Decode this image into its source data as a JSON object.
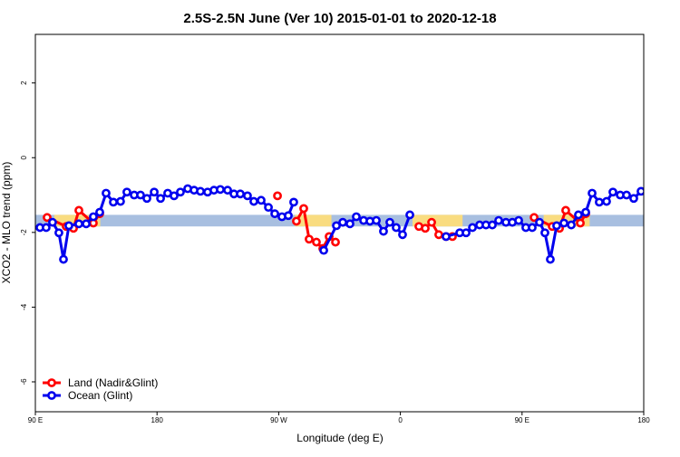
{
  "chart_data": {
    "type": "line",
    "title": "2.5S-2.5N June (Ver 10)   2015-01-01 to 2020-12-18",
    "xlabel": "Longitude (deg E)",
    "ylabel": "XCO2 - MLO trend (ppm)",
    "xlim": [
      90,
      540
    ],
    "ylim": [
      -6.8,
      3.3
    ],
    "xticks": [
      {
        "value": 90,
        "label": "90 E"
      },
      180,
      {
        "value": 270,
        "label": "90 W"
      },
      {
        "value": 360,
        "label": "0"
      },
      {
        "value": 450,
        "label": "90 E"
      },
      {
        "value": 540,
        "label": "180"
      }
    ],
    "yticks": [
      -6,
      -4,
      -2,
      0,
      2
    ],
    "reference_band": [
      -1.84,
      -1.53
    ],
    "band_color": "#a8bfe0",
    "land_ranges": [
      [
        104,
        138
      ],
      [
        282,
        309
      ],
      [
        369,
        406
      ],
      [
        466,
        500
      ]
    ],
    "land_range_color": "#f9dc80",
    "legend": "bottom-left",
    "series": [
      {
        "name": "Land (Nadir&Glint)",
        "color": "#ff0000",
        "x": [
          98.7,
          112.8,
          118.2,
          122.2,
          132.9,
          137.6,
          null,
          269.1,
          null,
          283.1,
          288.5,
          292.5,
          297.9,
          302.6,
          307.3,
          312.0,
          null,
          373.7,
          378.4,
          383.1,
          388.4,
          393.8,
          398.5,
          null,
          458.9,
          472.3,
          477.7,
          482.3,
          493.1,
          497.1
        ],
        "values": [
          -1.6,
          -1.84,
          -1.89,
          -1.41,
          -1.75,
          -1.5,
          null,
          -1.02,
          null,
          -1.7,
          -1.36,
          -2.18,
          -2.26,
          -2.43,
          -2.11,
          -2.26,
          null,
          -1.84,
          -1.89,
          -1.73,
          -2.06,
          -2.11,
          -2.11,
          null,
          -1.6,
          -1.84,
          -1.89,
          -1.41,
          -1.75,
          -1.5
        ]
      },
      {
        "name": "Ocean (Glint)",
        "color": "#0000ee",
        "x": [
          93.4,
          98.0,
          102.7,
          107.4,
          110.8,
          114.8,
          122.2,
          127.6,
          132.9,
          137.6,
          142.3,
          147.7,
          153.0,
          157.7,
          163.1,
          167.8,
          172.5,
          177.9,
          182.6,
          187.9,
          192.6,
          197.3,
          202.7,
          207.4,
          212.1,
          217.4,
          222.1,
          226.8,
          232.2,
          236.9,
          241.6,
          246.9,
          251.6,
          257.0,
          262.4,
          267.1,
          272.4,
          277.1,
          281.1,
          null,
          303.3,
          312.7,
          317.4,
          322.7,
          327.4,
          332.8,
          337.5,
          342.2,
          347.5,
          352.2,
          356.9,
          361.6,
          367.0,
          null,
          393.8,
          403.9,
          408.6,
          413.3,
          418.6,
          423.3,
          428.0,
          432.7,
          438.1,
          442.8,
          447.5,
          452.8,
          457.5,
          462.9,
          466.9,
          470.9,
          475.6,
          481.0,
          486.4,
          491.7,
          497.1,
          501.8,
          507.1,
          512.5,
          517.2,
          522.6,
          527.3,
          532.6,
          538.0
        ],
        "values": [
          -1.87,
          -1.87,
          -1.73,
          -2.01,
          -2.72,
          -1.82,
          -1.77,
          -1.77,
          -1.58,
          -1.46,
          -0.95,
          -1.19,
          -1.17,
          -0.92,
          -1.0,
          -1.0,
          -1.09,
          -0.92,
          -1.09,
          -0.95,
          -1.02,
          -0.92,
          -0.83,
          -0.87,
          -0.9,
          -0.92,
          -0.87,
          -0.85,
          -0.87,
          -0.97,
          -0.97,
          -1.02,
          -1.17,
          -1.14,
          -1.33,
          -1.5,
          -1.58,
          -1.55,
          -1.19,
          null,
          -2.48,
          -1.82,
          -1.73,
          -1.77,
          -1.58,
          -1.68,
          -1.7,
          -1.68,
          -1.97,
          -1.73,
          -1.87,
          -2.06,
          -1.53,
          null,
          -2.11,
          -2.01,
          -2.01,
          -1.87,
          -1.8,
          -1.8,
          -1.8,
          -1.68,
          -1.73,
          -1.73,
          -1.68,
          -1.87,
          -1.87,
          -1.73,
          -2.01,
          -2.72,
          -1.82,
          -1.75,
          -1.8,
          -1.53,
          -1.46,
          -0.95,
          -1.19,
          -1.17,
          -0.92,
          -1.0,
          -1.0,
          -1.09,
          -0.9
        ]
      }
    ]
  }
}
